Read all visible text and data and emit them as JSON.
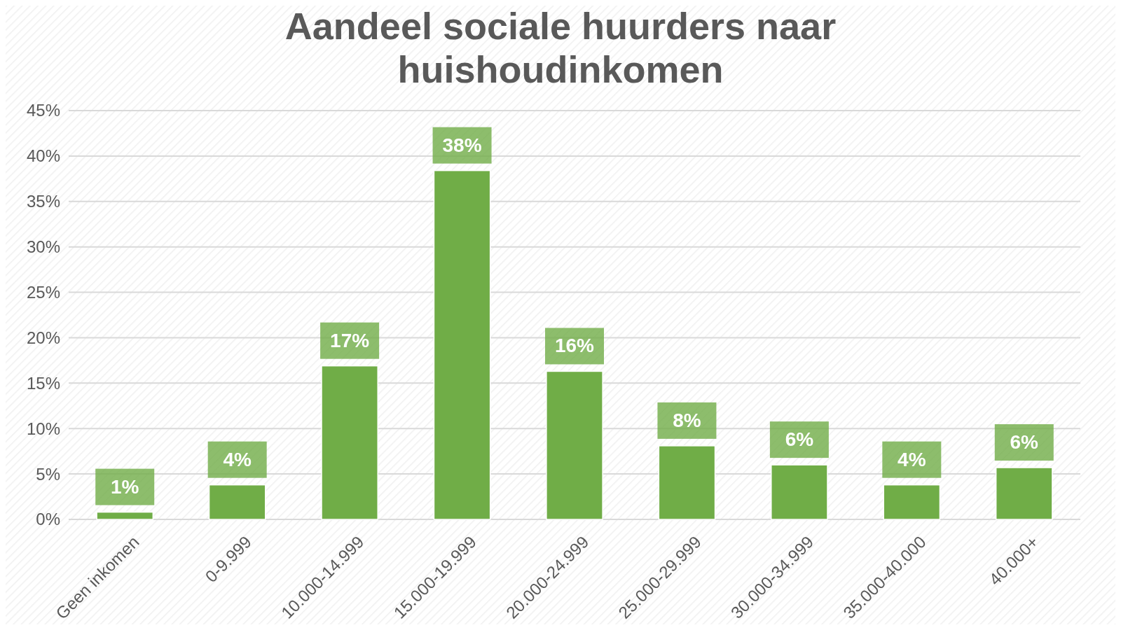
{
  "chart_data": {
    "type": "bar",
    "title": "Aandeel sociale huurders naar huishoudinkomen",
    "categories": [
      "Geen inkomen",
      "0-9.999",
      "10.000-14.999",
      "15.000-19.999",
      "20.000-24.999",
      "25.000-29.999",
      "30.000-34.999",
      "35.000-40.000",
      "40.000+"
    ],
    "values": [
      0.8,
      3.8,
      16.9,
      38.4,
      16.3,
      8.1,
      6.0,
      3.8,
      5.7
    ],
    "value_labels": [
      "1%",
      "4%",
      "17%",
      "38%",
      "16%",
      "8%",
      "6%",
      "4%",
      "6%"
    ],
    "color": "#70ad47",
    "ylim": [
      0,
      45
    ],
    "yticks": [
      {
        "value": 0,
        "label": "0%"
      },
      {
        "value": 5,
        "label": "5%"
      },
      {
        "value": 10,
        "label": "10%"
      },
      {
        "value": 15,
        "label": "15%"
      },
      {
        "value": 20,
        "label": "20%"
      },
      {
        "value": 25,
        "label": "25%"
      },
      {
        "value": 30,
        "label": "30%"
      },
      {
        "value": 35,
        "label": "35%"
      },
      {
        "value": 40,
        "label": "40%"
      },
      {
        "value": 45,
        "label": "45%"
      }
    ],
    "grid": true
  }
}
